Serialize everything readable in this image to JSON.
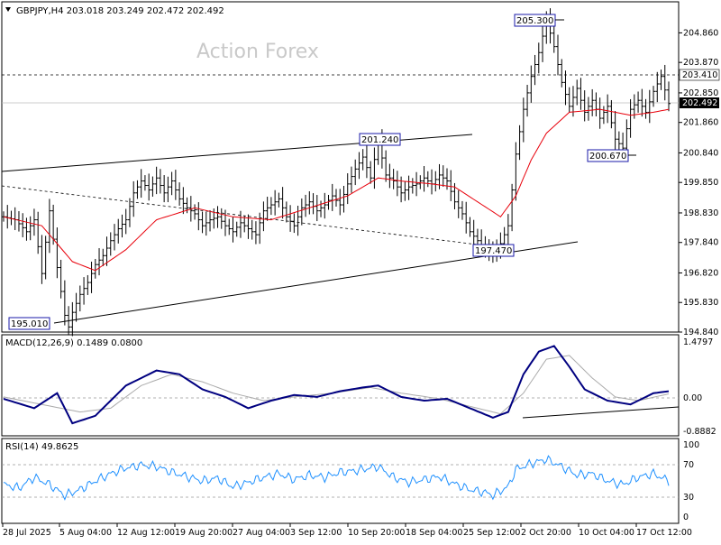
{
  "header": {
    "symbol": "GBPJPY,H4",
    "ohlc": "203.018 203.249 202.472 202.492"
  },
  "watermark": "Action Forex",
  "price_axis": [
    "204.860",
    "203.870",
    "202.850",
    "201.860",
    "200.840",
    "199.850",
    "198.830",
    "197.840",
    "196.820",
    "195.830",
    "194.840"
  ],
  "price_tags": {
    "level": "203.410",
    "current": "202.492"
  },
  "annotations": [
    "205.300",
    "201.240",
    "200.670",
    "197.470",
    "195.010"
  ],
  "macd_panel": {
    "label": "MACD(12,26,9) 0.1489 0.0800",
    "ticks": [
      "1.4797",
      "0.00",
      "-0.8882"
    ]
  },
  "rsi_panel": {
    "label": "RSI(14) 49.8625",
    "ticks": [
      "100",
      "70",
      "30",
      "0"
    ]
  },
  "time_axis": [
    "28 Jul 2025",
    "5 Aug 04:00",
    "12 Aug 12:00",
    "19 Aug 20:00",
    "27 Aug 04:00",
    "3 Sep 12:00",
    "10 Sep 20:00",
    "18 Sep 04:00",
    "25 Sep 12:00",
    "2 Oct 20:00",
    "10 Oct 04:00",
    "17 Oct 12:00"
  ],
  "chart_data": {
    "type": "line",
    "ylim": [
      194.84,
      205.9
    ],
    "price_path": [
      [
        0,
        198.7
      ],
      [
        3,
        198.6
      ],
      [
        6,
        198.2
      ],
      [
        8,
        198.6
      ],
      [
        10,
        196.8
      ],
      [
        12,
        198.9
      ],
      [
        14,
        197.0
      ],
      [
        16,
        195.4
      ],
      [
        17,
        195.01
      ],
      [
        18,
        195.5
      ],
      [
        20,
        196.1
      ],
      [
        22,
        196.5
      ],
      [
        24,
        197.1
      ],
      [
        26,
        197.4
      ],
      [
        28,
        197.9
      ],
      [
        30,
        198.3
      ],
      [
        32,
        198.6
      ],
      [
        34,
        199.5
      ],
      [
        36,
        199.9
      ],
      [
        38,
        199.6
      ],
      [
        40,
        200.0
      ],
      [
        42,
        199.5
      ],
      [
        44,
        199.9
      ],
      [
        46,
        199.3
      ],
      [
        48,
        199.0
      ],
      [
        50,
        198.8
      ],
      [
        52,
        198.4
      ],
      [
        54,
        198.6
      ],
      [
        56,
        198.7
      ],
      [
        58,
        198.4
      ],
      [
        60,
        198.2
      ],
      [
        62,
        198.5
      ],
      [
        64,
        198.3
      ],
      [
        66,
        198.1
      ],
      [
        68,
        198.9
      ],
      [
        70,
        199.1
      ],
      [
        72,
        199.3
      ],
      [
        74,
        198.7
      ],
      [
        76,
        198.4
      ],
      [
        78,
        199.0
      ],
      [
        80,
        199.2
      ],
      [
        82,
        198.9
      ],
      [
        84,
        199.1
      ],
      [
        86,
        199.4
      ],
      [
        88,
        199.1
      ],
      [
        90,
        199.8
      ],
      [
        92,
        200.3
      ],
      [
        94,
        200.7
      ],
      [
        96,
        200.0
      ],
      [
        98,
        201.24
      ],
      [
        100,
        200.1
      ],
      [
        102,
        199.9
      ],
      [
        104,
        199.5
      ],
      [
        106,
        199.7
      ],
      [
        108,
        199.8
      ],
      [
        110,
        200.0
      ],
      [
        112,
        199.8
      ],
      [
        114,
        200.1
      ],
      [
        116,
        199.9
      ],
      [
        118,
        199.2
      ],
      [
        120,
        198.8
      ],
      [
        122,
        198.2
      ],
      [
        124,
        197.9
      ],
      [
        126,
        197.6
      ],
      [
        128,
        197.47
      ],
      [
        130,
        197.8
      ],
      [
        132,
        198.4
      ],
      [
        134,
        200.8
      ],
      [
        136,
        202.3
      ],
      [
        138,
        203.4
      ],
      [
        140,
        204.2
      ],
      [
        142,
        205.3
      ],
      [
        144,
        204.4
      ],
      [
        146,
        203.2
      ],
      [
        148,
        202.4
      ],
      [
        150,
        203.0
      ],
      [
        152,
        202.2
      ],
      [
        154,
        202.6
      ],
      [
        156,
        202.0
      ],
      [
        158,
        202.4
      ],
      [
        160,
        201.3
      ],
      [
        162,
        201.0
      ],
      [
        164,
        202.3
      ],
      [
        166,
        202.6
      ],
      [
        168,
        202.2
      ],
      [
        170,
        202.9
      ],
      [
        172,
        203.4
      ],
      [
        174,
        202.492
      ]
    ],
    "ma_path": [
      [
        0,
        198.7
      ],
      [
        10,
        198.4
      ],
      [
        18,
        197.2
      ],
      [
        24,
        196.9
      ],
      [
        32,
        197.6
      ],
      [
        40,
        198.6
      ],
      [
        50,
        199.0
      ],
      [
        60,
        198.7
      ],
      [
        70,
        198.6
      ],
      [
        80,
        199.0
      ],
      [
        90,
        199.4
      ],
      [
        98,
        200.0
      ],
      [
        104,
        199.9
      ],
      [
        112,
        199.8
      ],
      [
        118,
        199.7
      ],
      [
        124,
        199.2
      ],
      [
        130,
        198.7
      ],
      [
        134,
        199.4
      ],
      [
        138,
        200.6
      ],
      [
        142,
        201.5
      ],
      [
        148,
        202.2
      ],
      [
        156,
        202.3
      ],
      [
        164,
        202.1
      ],
      [
        170,
        202.2
      ],
      [
        174,
        202.3
      ]
    ],
    "macd_range": [
      -0.8882,
      1.4797
    ],
    "macd_path": [
      [
        0,
        -0.05
      ],
      [
        8,
        -0.3
      ],
      [
        14,
        0.1
      ],
      [
        18,
        -0.7
      ],
      [
        24,
        -0.5
      ],
      [
        32,
        0.3
      ],
      [
        40,
        0.7
      ],
      [
        46,
        0.6
      ],
      [
        52,
        0.2
      ],
      [
        58,
        0.0
      ],
      [
        64,
        -0.3
      ],
      [
        70,
        -0.1
      ],
      [
        76,
        0.05
      ],
      [
        82,
        0.0
      ],
      [
        88,
        0.15
      ],
      [
        94,
        0.25
      ],
      [
        98,
        0.3
      ],
      [
        104,
        0.0
      ],
      [
        110,
        -0.1
      ],
      [
        116,
        -0.05
      ],
      [
        122,
        -0.3
      ],
      [
        128,
        -0.55
      ],
      [
        132,
        -0.4
      ],
      [
        136,
        0.6
      ],
      [
        140,
        1.2
      ],
      [
        144,
        1.35
      ],
      [
        148,
        0.8
      ],
      [
        152,
        0.2
      ],
      [
        158,
        -0.1
      ],
      [
        164,
        -0.2
      ],
      [
        170,
        0.1
      ],
      [
        174,
        0.15
      ]
    ],
    "signal_path": [
      [
        0,
        0.0
      ],
      [
        10,
        -0.2
      ],
      [
        20,
        -0.4
      ],
      [
        28,
        -0.3
      ],
      [
        36,
        0.3
      ],
      [
        44,
        0.6
      ],
      [
        52,
        0.4
      ],
      [
        60,
        0.1
      ],
      [
        68,
        -0.1
      ],
      [
        76,
        0.0
      ],
      [
        86,
        0.1
      ],
      [
        96,
        0.25
      ],
      [
        104,
        0.1
      ],
      [
        114,
        -0.05
      ],
      [
        124,
        -0.3
      ],
      [
        130,
        -0.45
      ],
      [
        136,
        0.1
      ],
      [
        142,
        1.0
      ],
      [
        148,
        1.1
      ],
      [
        154,
        0.5
      ],
      [
        160,
        0.0
      ],
      [
        166,
        -0.1
      ],
      [
        174,
        0.08
      ]
    ],
    "rsi_path": [
      [
        0,
        45
      ],
      [
        4,
        40
      ],
      [
        8,
        55
      ],
      [
        12,
        45
      ],
      [
        16,
        30
      ],
      [
        20,
        38
      ],
      [
        24,
        50
      ],
      [
        28,
        60
      ],
      [
        32,
        68
      ],
      [
        36,
        72
      ],
      [
        40,
        70
      ],
      [
        44,
        62
      ],
      [
        48,
        56
      ],
      [
        52,
        50
      ],
      [
        56,
        54
      ],
      [
        60,
        42
      ],
      [
        64,
        48
      ],
      [
        68,
        55
      ],
      [
        72,
        60
      ],
      [
        76,
        52
      ],
      [
        80,
        58
      ],
      [
        84,
        55
      ],
      [
        88,
        62
      ],
      [
        92,
        64
      ],
      [
        96,
        68
      ],
      [
        98,
        70
      ],
      [
        102,
        55
      ],
      [
        106,
        48
      ],
      [
        110,
        52
      ],
      [
        114,
        56
      ],
      [
        118,
        46
      ],
      [
        122,
        38
      ],
      [
        126,
        34
      ],
      [
        128,
        30
      ],
      [
        132,
        42
      ],
      [
        134,
        66
      ],
      [
        138,
        74
      ],
      [
        142,
        80
      ],
      [
        146,
        70
      ],
      [
        150,
        58
      ],
      [
        154,
        60
      ],
      [
        158,
        50
      ],
      [
        162,
        45
      ],
      [
        166,
        55
      ],
      [
        170,
        60
      ],
      [
        174,
        50
      ]
    ]
  }
}
